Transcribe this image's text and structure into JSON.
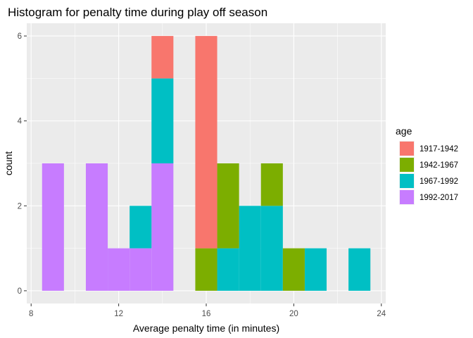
{
  "chart_data": {
    "type": "bar",
    "title": "Histogram for penalty time during play off season",
    "xlabel": "Average penalty time (in minutes)",
    "ylabel": "count",
    "xlim": [
      7.8,
      24.2
    ],
    "ylim": [
      -0.3,
      6.3
    ],
    "x_ticks": [
      8,
      12,
      16,
      20,
      24
    ],
    "y_ticks": [
      0,
      2,
      4,
      6
    ],
    "binwidth": 1,
    "grid": true,
    "legend": {
      "title": "age",
      "position": "right"
    },
    "series": [
      {
        "name": "1917-1942",
        "color": "#F8766D",
        "bins": [
          [
            14,
            1
          ],
          [
            16,
            5
          ]
        ]
      },
      {
        "name": "1942-1967",
        "color": "#7CAE00",
        "bins": [
          [
            16,
            1
          ],
          [
            17,
            2
          ],
          [
            19,
            1
          ],
          [
            20,
            1
          ]
        ]
      },
      {
        "name": "1967-1992",
        "color": "#00BFC4",
        "bins": [
          [
            13,
            1
          ],
          [
            14,
            2
          ],
          [
            17,
            1
          ],
          [
            18,
            2
          ],
          [
            19,
            2
          ],
          [
            21,
            1
          ],
          [
            23,
            1
          ]
        ]
      },
      {
        "name": "1992-2017",
        "color": "#C77CFF",
        "bins": [
          [
            9,
            3
          ],
          [
            11,
            3
          ],
          [
            12,
            1
          ],
          [
            13,
            1
          ],
          [
            14,
            3
          ]
        ]
      }
    ]
  }
}
